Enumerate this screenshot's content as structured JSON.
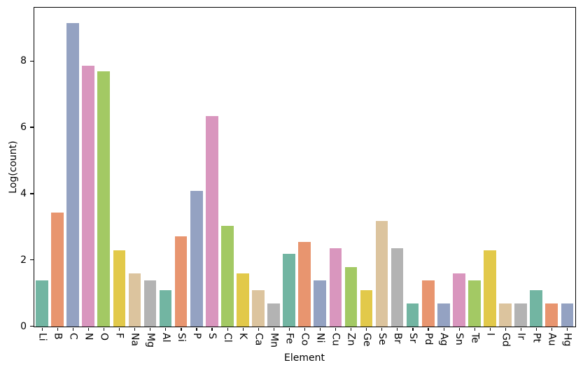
{
  "figure": {
    "background": "#ffffff",
    "spine_color": "#000000"
  },
  "chart_data": {
    "type": "bar",
    "title": "",
    "xlabel": "Element",
    "ylabel": "Log(count)",
    "categories": [
      "Li",
      "B",
      "C",
      "N",
      "O",
      "F",
      "Na",
      "Mg",
      "Al",
      "Si",
      "P",
      "S",
      "Cl",
      "K",
      "Ca",
      "Mn",
      "Fe",
      "Co",
      "Ni",
      "Cu",
      "Zn",
      "Ge",
      "Se",
      "Br",
      "Sr",
      "Pd",
      "Ag",
      "Sn",
      "Te",
      "I",
      "Gd",
      "Ir",
      "Pt",
      "Au",
      "Hg"
    ],
    "values": [
      1.39,
      3.43,
      9.15,
      7.86,
      7.7,
      2.3,
      1.61,
      1.39,
      1.1,
      2.71,
      4.09,
      6.34,
      3.03,
      1.61,
      1.1,
      0.69,
      2.2,
      2.56,
      1.39,
      2.37,
      1.79,
      1.1,
      3.19,
      2.37,
      0.69,
      1.39,
      0.69,
      1.61,
      1.39,
      2.3,
      0.69,
      0.69,
      1.1,
      0.69,
      0.69
    ],
    "ylim": [
      0,
      9.6
    ],
    "yticks": [
      0,
      2,
      4,
      6,
      8
    ],
    "grid": false,
    "legend": "none",
    "bar_color_cycle": [
      "#72b5a2",
      "#e8956f",
      "#94a2c2",
      "#d996be",
      "#a3c964",
      "#e2c94a",
      "#dcc49e",
      "#b3b3b3"
    ],
    "bar_width_fraction": 0.8,
    "xtick_label_rotation": "vertical"
  }
}
